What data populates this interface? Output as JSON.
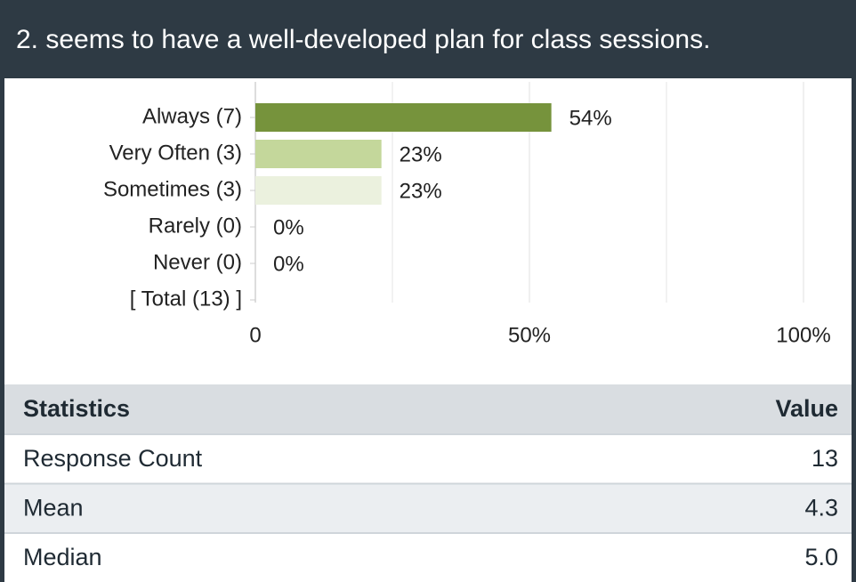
{
  "header": {
    "title": "2. seems to have a well-developed plan for class sessions."
  },
  "chart_data": {
    "type": "bar",
    "orientation": "horizontal",
    "categories": [
      "Always (7)",
      "Very Often (3)",
      "Sometimes (3)",
      "Rarely (0)",
      "Never (0)",
      "[ Total (13) ]"
    ],
    "values": [
      54,
      23,
      23,
      0,
      0,
      null
    ],
    "value_labels": [
      "54%",
      "23%",
      "23%",
      "0%",
      "0%",
      null
    ],
    "colors": [
      "#76933c",
      "#c4d79b",
      "#ebf1de",
      "#c4d79b",
      "#c4d79b",
      "#c4d79b"
    ],
    "xlim": [
      0,
      100
    ],
    "xticks": [
      0,
      {
        "value": 50,
        "label": "50%"
      },
      {
        "value": 100,
        "label": "100%"
      }
    ],
    "minor_xticks": [
      25,
      75
    ],
    "grid": true
  },
  "table": {
    "header": [
      "Statistics",
      "Value"
    ],
    "rows": [
      [
        "Response Count",
        "13"
      ],
      [
        "Mean",
        "4.3"
      ],
      [
        "Median",
        "5.0"
      ]
    ]
  }
}
